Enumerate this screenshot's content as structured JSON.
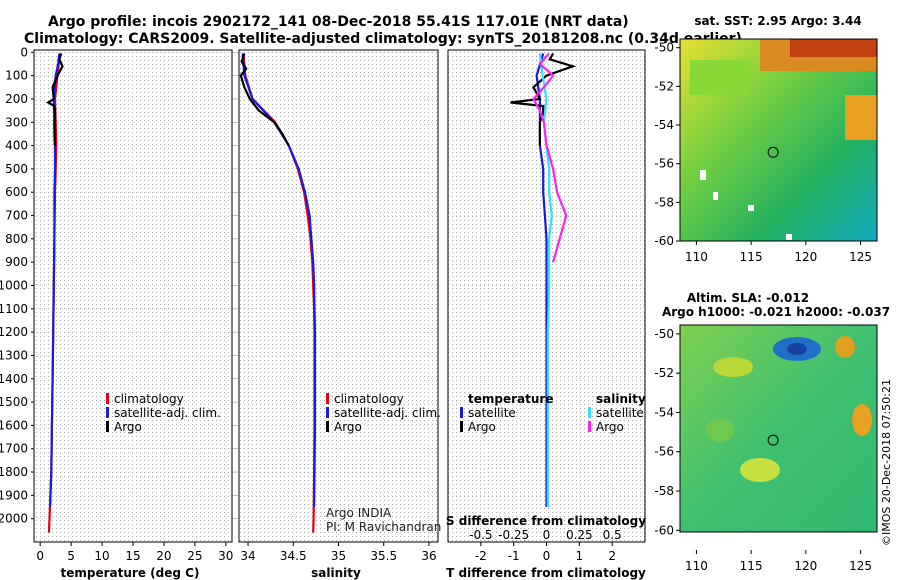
{
  "header": {
    "line1": "Argo profile: incois 2902172_141 08-Dec-2018 55.41S 117.01E (NRT data)",
    "line2": "Climatology: CARS2009. Satellite-adjusted climatology: synTS_20181208.nc (0.34d earlier)"
  },
  "credits": {
    "program": "Argo INDIA",
    "pi": "PI: M Ravichandran",
    "watermark": "©IMOS 20-Dec-2018 07:50:21"
  },
  "colors": {
    "climatology": "#e0001b",
    "satellite": "#1a1adf",
    "argo": "#000000",
    "sat_salinity": "#33e0ff",
    "argo_salinity": "#ff22ee",
    "grid": "#555555"
  },
  "legends": {
    "temp_panel": [
      "climatology",
      "satellite-adj. clim.",
      "Argo"
    ],
    "sal_panel": [
      "climatology",
      "satellite-adj. clim.",
      "Argo"
    ],
    "diff_temperature_header": "temperature",
    "diff_salinity_header": "salinity",
    "diff_temperature": [
      "satellite",
      "Argo"
    ],
    "diff_salinity": [
      "satellite",
      "Argo"
    ]
  },
  "maps": {
    "sst_title": "sat. SST: 2.95 Argo: 3.44",
    "sla_title": "Altim. SLA: -0.012",
    "sla_subtitle": "Argo h1000: -0.021 h2000: -0.037",
    "lon_ticks": [
      "110",
      "115",
      "120",
      "125"
    ],
    "lat_ticks": [
      "-50",
      "-52",
      "-54",
      "-56",
      "-58",
      "-60"
    ],
    "float_lon": 117.01,
    "float_lat": -55.41
  },
  "chart_data": [
    {
      "type": "line",
      "panel": "temperature",
      "xlabel": "temperature (deg C)",
      "ylabel": "",
      "xlim": [
        -1,
        31
      ],
      "ylim": [
        2100,
        -10
      ],
      "xticks": [
        "0",
        "5",
        "10",
        "15",
        "20",
        "25",
        "30"
      ],
      "yticks": [
        "0",
        "100",
        "200",
        "300",
        "400",
        "500",
        "600",
        "700",
        "800",
        "900",
        "1000",
        "1100",
        "1200",
        "1300",
        "1400",
        "1500",
        "1600",
        "1700",
        "1800",
        "1900",
        "2000"
      ],
      "grid": true,
      "legend_position": "center-right",
      "series": [
        {
          "name": "climatology",
          "depth": [
            5,
            50,
            100,
            200,
            300,
            400,
            500,
            600,
            800,
            1000,
            1200,
            1400,
            1600,
            1800,
            2000,
            2060
          ],
          "values": [
            3.2,
            3.0,
            2.8,
            2.4,
            2.5,
            2.6,
            2.5,
            2.4,
            2.3,
            2.2,
            2.1,
            2.0,
            1.9,
            1.8,
            1.5,
            1.4
          ]
        },
        {
          "name": "satellite-adj. clim.",
          "depth": [
            5,
            50,
            100,
            200,
            300,
            400,
            500,
            600,
            800,
            1000,
            1200,
            1400,
            1600,
            1800,
            1950
          ],
          "values": [
            3.1,
            2.9,
            2.5,
            2.2,
            2.3,
            2.4,
            2.4,
            2.3,
            2.3,
            2.2,
            2.1,
            2.0,
            1.9,
            1.8,
            1.6
          ]
        },
        {
          "name": "Argo",
          "depth": [
            5,
            30,
            60,
            100,
            150,
            200,
            215,
            230,
            260,
            300,
            350,
            400
          ],
          "values": [
            3.4,
            3.1,
            3.6,
            2.8,
            2.0,
            2.2,
            1.3,
            2.3,
            2.4,
            2.3,
            2.3,
            2.4
          ]
        }
      ]
    },
    {
      "type": "line",
      "panel": "salinity",
      "xlabel": "salinity",
      "ylabel": "",
      "xlim": [
        33.9,
        36.1
      ],
      "ylim": [
        2100,
        -10
      ],
      "xticks": [
        "34",
        "34.5",
        "35",
        "35.5",
        "36"
      ],
      "grid": true,
      "legend_position": "center-right",
      "series": [
        {
          "name": "climatology",
          "depth": [
            5,
            100,
            200,
            300,
            400,
            500,
            600,
            700,
            800,
            900,
            1000,
            1100,
            1200,
            1300,
            1400,
            1600,
            1800,
            2000,
            2060
          ],
          "values": [
            33.95,
            33.97,
            34.05,
            34.3,
            34.45,
            34.55,
            34.62,
            34.66,
            34.69,
            34.71,
            34.72,
            34.73,
            34.735,
            34.735,
            34.735,
            34.735,
            34.73,
            34.725,
            34.72
          ]
        },
        {
          "name": "satellite-adj. clim.",
          "depth": [
            5,
            100,
            200,
            300,
            400,
            500,
            600,
            700,
            800,
            900,
            1000,
            1100,
            1200,
            1400,
            1600,
            1800,
            1950
          ],
          "values": [
            33.94,
            33.96,
            34.05,
            34.29,
            34.45,
            34.56,
            34.63,
            34.68,
            34.7,
            34.72,
            34.73,
            34.735,
            34.74,
            34.74,
            34.74,
            34.735,
            34.73
          ]
        },
        {
          "name": "Argo",
          "depth": [
            5,
            40,
            70,
            100,
            150,
            200,
            250,
            300,
            350,
            400
          ],
          "values": [
            33.96,
            33.93,
            33.98,
            33.92,
            33.96,
            34.02,
            34.12,
            34.29,
            34.38,
            34.45
          ]
        }
      ]
    },
    {
      "type": "line",
      "panel": "difference",
      "xlabel": "T difference from climatology",
      "xlabel2": "S difference from climatology",
      "xlim": [
        -3,
        3
      ],
      "ylim": [
        2100,
        -10
      ],
      "xticks": [
        "-2",
        "-1",
        "0",
        "1",
        "2"
      ],
      "xticks_salinity": [
        "-0.5",
        "-0.25",
        "0",
        "0.25",
        "0.5"
      ],
      "grid": true,
      "series": [
        {
          "name": "temperature satellite",
          "depth": [
            5,
            100,
            200,
            300,
            400,
            500,
            600,
            700,
            800,
            900,
            1000,
            1200,
            1400,
            1600,
            1800,
            1950
          ],
          "values": [
            -0.1,
            -0.3,
            -0.2,
            -0.2,
            -0.2,
            -0.1,
            -0.1,
            -0.05,
            0,
            0,
            0,
            0,
            0,
            0,
            0,
            0
          ]
        },
        {
          "name": "temperature Argo",
          "depth": [
            5,
            30,
            60,
            100,
            150,
            200,
            215,
            230,
            260,
            300,
            350,
            400
          ],
          "values": [
            0.2,
            0.1,
            0.8,
            0,
            -0.4,
            -0.2,
            -1.1,
            -0.1,
            -0.1,
            -0.2,
            -0.2,
            -0.2
          ]
        },
        {
          "name": "salinity satellite",
          "depth": [
            5,
            100,
            200,
            300,
            400,
            500,
            600,
            700,
            800,
            900,
            1000,
            1200,
            1400,
            1600,
            1800,
            1950
          ],
          "values": [
            -0.05,
            -0.03,
            0,
            -0.02,
            0,
            0.02,
            0.02,
            0.04,
            0.02,
            0.02,
            0.02,
            0.01,
            0.01,
            0.01,
            0.01,
            0.01
          ]
        },
        {
          "name": "salinity Argo",
          "depth": [
            5,
            50,
            100,
            150,
            200,
            250,
            300,
            400,
            500,
            600,
            700,
            800,
            900
          ],
          "values": [
            0.02,
            -0.05,
            0.05,
            -0.02,
            -0.1,
            -0.05,
            -0.02,
            0,
            0.05,
            0.08,
            0.15,
            0.1,
            0.05
          ]
        }
      ]
    }
  ]
}
